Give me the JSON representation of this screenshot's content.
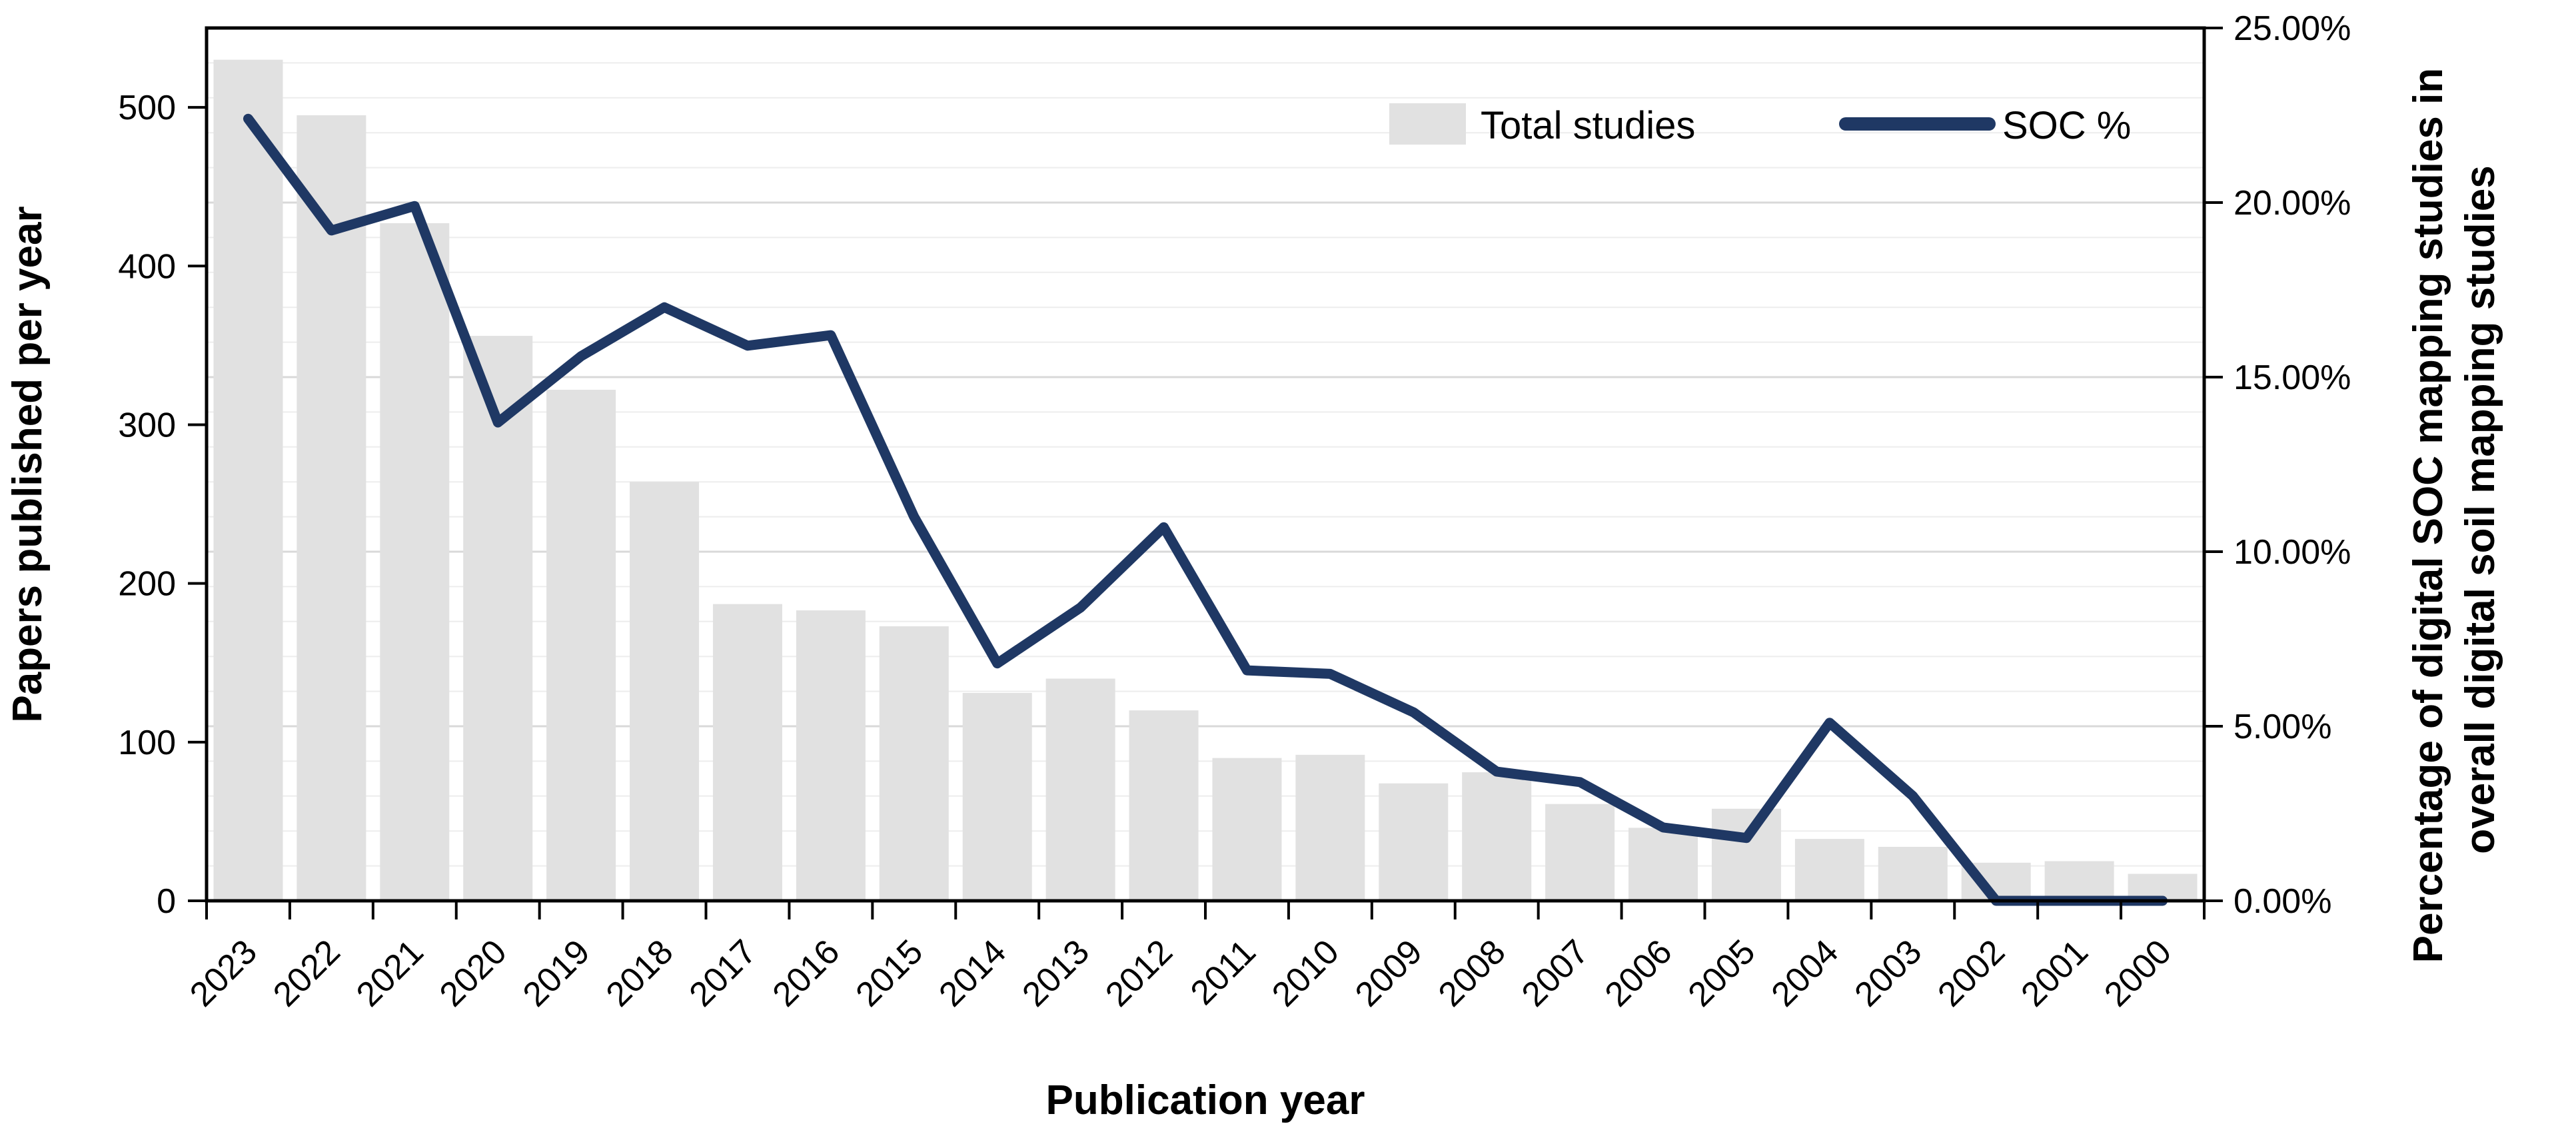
{
  "figure": {
    "background_color": "#ffffff",
    "border_color": "#000000",
    "gridline_minor_color": "#ededed",
    "gridline_major_color": "#d9d9d9"
  },
  "legend": {
    "items": [
      {
        "label": "Total studies",
        "type": "bar-swatch",
        "color": "#e1e1e1"
      },
      {
        "label": "SOC %",
        "type": "line-swatch",
        "color": "#1f3864"
      }
    ]
  },
  "left_axis": {
    "title": "Papers published per year",
    "tick_labels": [
      "0",
      "100",
      "200",
      "300",
      "400",
      "500"
    ],
    "tick_values": [
      0,
      100,
      200,
      300,
      400,
      500
    ]
  },
  "right_axis": {
    "title_lines": [
      "Percentage of digital SOC mapping studies in",
      "overall digital soil mapping studies"
    ],
    "tick_labels": [
      "0.00%",
      "5.00%",
      "10.00%",
      "15.00%",
      "20.00%",
      "25.00%"
    ],
    "tick_values": [
      0,
      5,
      10,
      15,
      20,
      25
    ]
  },
  "x_axis": {
    "title": "Publication year"
  },
  "chart_data": {
    "type": "bar",
    "subtype": "bar+line-dual-axis",
    "title": "",
    "xlabel": "Publication year",
    "ylabel_left": "Papers published per year",
    "ylabel_right": "Percentage of digital SOC mapping studies in overall digital soil mapping studies",
    "categories": [
      "2023",
      "2022",
      "2021",
      "2020",
      "2019",
      "2018",
      "2017",
      "2016",
      "2015",
      "2014",
      "2013",
      "2012",
      "2011",
      "2010",
      "2009",
      "2008",
      "2007",
      "2006",
      "2005",
      "2004",
      "2003",
      "2002",
      "2001",
      "2000"
    ],
    "series": [
      {
        "name": "Total studies",
        "type": "bar",
        "axis": "left",
        "color": "#e1e1e1",
        "values": [
          530,
          495,
          427,
          356,
          322,
          264,
          187,
          183,
          173,
          131,
          140,
          120,
          90,
          92,
          74,
          81,
          61,
          46,
          58,
          39,
          34,
          24,
          25,
          17
        ]
      },
      {
        "name": "SOC %",
        "type": "line",
        "axis": "right",
        "color": "#1f3864",
        "values": [
          22.4,
          19.2,
          19.9,
          13.7,
          15.6,
          17.0,
          15.9,
          16.2,
          11.0,
          6.8,
          8.4,
          10.7,
          6.6,
          6.5,
          5.4,
          3.7,
          3.4,
          2.1,
          1.8,
          5.1,
          3.0,
          0.0,
          0.0,
          0.0
        ]
      }
    ],
    "ylim_left": [
      0,
      550
    ],
    "ylim_right": [
      0,
      25
    ],
    "grid": {
      "on": true,
      "minor_step_pct": 1,
      "major_step_pct": 5,
      "orientation": "horizontal"
    },
    "legend_position": "top-right-inside"
  }
}
